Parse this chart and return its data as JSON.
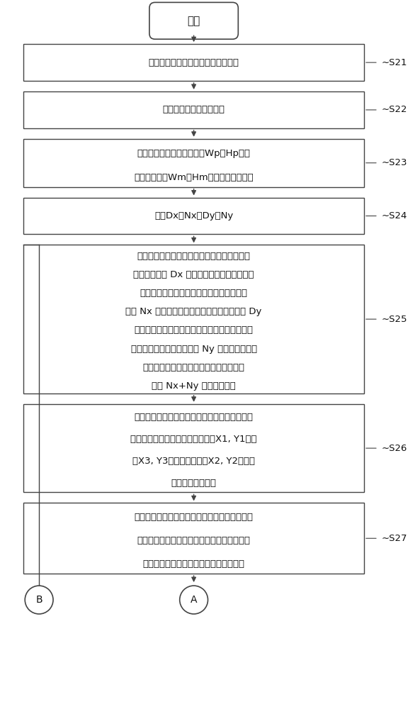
{
  "bg_color": "#ffffff",
  "line_color": "#444444",
  "text_color": "#111111",
  "start_label": "开始",
  "boxes": [
    {
      "lines": [
        "于该承载平台上设置一触摸显示面板"
      ],
      "step": "S21",
      "nlines": 1
    },
    {
      "lines": [
        "使移动模块回到机械原点"
      ],
      "step": "S22",
      "nlines": 1
    },
    {
      "lines": [
        "载入触摸显示面板的尺寸（Wp与Hp）、",
        "标记的尺寸（Wm与Hm）及机台相关信息"
      ],
      "step": "S23",
      "nlines": 2
    },
    {
      "lines": [
        "决定Dx、Nx、Dy、Ny"
      ],
      "step": "S24",
      "nlines": 1
    },
    {
      "lines": [
        "利用该移动模块控制单元，在长度方向上将该",
        "移动模块移动 Dx 距离，并于每次移动后使该",
        "碰触单元按压该触摸显示面板一次，而一共",
        "按压 Nx 次，在宽度方向上将该移动模块移动 Dy",
        "距离，并于每次移动后使该碰触单元按压该触摸",
        "显示面板一次，而一共按压 Ny 次，以使该触摸",
        "显示面板显示包含至少一转角排列的多个",
        "（共 Nx+Ny 个）该标记。"
      ],
      "step": "S25",
      "nlines": 8
    },
    {
      "lines": [
        "利用该图像辨识单元辨识该图像上的该图像上的",
        "该等标记所排列的图案的二端点（X1, Y1）、",
        "（X3, Y3）与一转角处（X2, Y2）的该",
        "标记的位置坐标。"
      ],
      "step": "S26",
      "nlines": 4
    },
    {
      "lines": [
        "从该标记数量、位置坐标与其对应的该移动模块",
        "的移动量来计算出该图像上的位置补偿量与其",
        "对应的该移动模块的移动量间的转换关系"
      ],
      "step": "S27",
      "nlines": 3
    }
  ],
  "font_size_box": 9.5,
  "font_size_step": 9.5,
  "font_size_start": 11,
  "font_size_end": 10
}
